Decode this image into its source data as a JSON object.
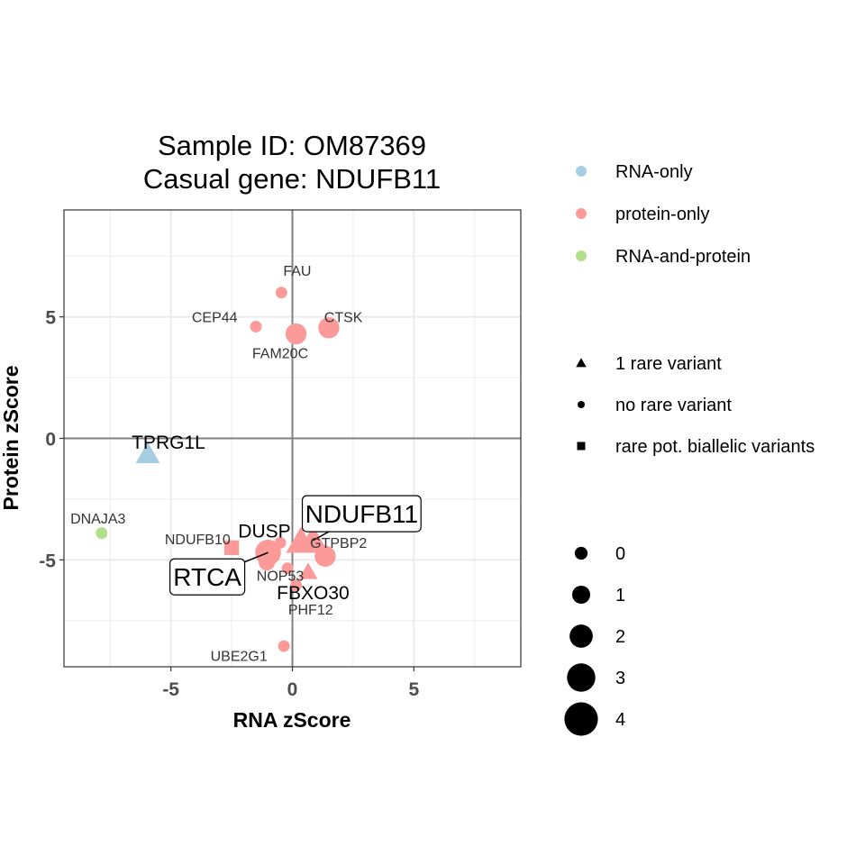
{
  "chart_data": {
    "type": "scatter",
    "title_lines": [
      "Sample ID: OM87369",
      "Casual gene: NDUFB11"
    ],
    "xlabel": "RNA zScore",
    "ylabel": "Protein zScore",
    "xlim": [
      -9.4,
      9.4
    ],
    "ylim": [
      -9.4,
      9.4
    ],
    "x_ticks": [
      -5,
      0,
      5
    ],
    "y_ticks": [
      -5,
      0,
      5
    ],
    "x_tick_labels": [
      "-5",
      "0",
      "5"
    ],
    "y_tick_labels": [
      "-5",
      "0",
      "5"
    ],
    "grid": true,
    "legend_position": "right",
    "colors": {
      "rna_only": "#a6cee3",
      "protein_only": "#fb9a99",
      "rna_and_protein": "#b2df8a"
    },
    "color_legend": [
      {
        "key": "rna_only",
        "label": "RNA-only"
      },
      {
        "key": "protein_only",
        "label": "protein-only"
      },
      {
        "key": "rna_and_protein",
        "label": "RNA-and-protein"
      }
    ],
    "shape_legend": [
      {
        "shape": "triangle",
        "label": "1 rare variant"
      },
      {
        "shape": "circle",
        "label": "no rare variant"
      },
      {
        "shape": "square",
        "label": "rare pot. biallelic variants"
      }
    ],
    "size_legend": [
      {
        "value": 0,
        "label": "0"
      },
      {
        "value": 1,
        "label": "1"
      },
      {
        "value": 2,
        "label": "2"
      },
      {
        "value": 3,
        "label": "3"
      },
      {
        "value": 4,
        "label": "4"
      }
    ],
    "points": [
      {
        "gene": "FAU",
        "x": -0.45,
        "y": 6.0,
        "color": "protein_only",
        "shape": "circle",
        "size": 0
      },
      {
        "gene": "CEP44",
        "x": -1.5,
        "y": 4.6,
        "color": "protein_only",
        "shape": "circle",
        "size": 0
      },
      {
        "gene": "FAM20C",
        "x": 0.15,
        "y": 4.3,
        "color": "protein_only",
        "shape": "circle",
        "size": 2
      },
      {
        "gene": "CTSK",
        "x": 1.5,
        "y": 4.55,
        "color": "protein_only",
        "shape": "circle",
        "size": 2
      },
      {
        "gene": "TPRG1L",
        "x": -5.95,
        "y": -0.65,
        "color": "rna_only",
        "shape": "triangle",
        "size": 2
      },
      {
        "gene": "DNAJA3",
        "x": -7.85,
        "y": -3.9,
        "color": "rna_and_protein",
        "shape": "circle",
        "size": 0
      },
      {
        "gene": "NDUFB10",
        "x": -2.5,
        "y": -4.5,
        "color": "protein_only",
        "shape": "square",
        "size": 1
      },
      {
        "gene": "RTCA",
        "x": -1.0,
        "y": -4.7,
        "color": "protein_only",
        "shape": "circle",
        "size": 3
      },
      {
        "gene": "",
        "x": -1.05,
        "y": -5.1,
        "color": "protein_only",
        "shape": "circle",
        "size": 1
      },
      {
        "gene": "",
        "x": -0.5,
        "y": -4.3,
        "color": "protein_only",
        "shape": "circle",
        "size": 0
      },
      {
        "gene": "DUSP",
        "x": 0.35,
        "y": -4.25,
        "color": "protein_only",
        "shape": "triangle",
        "size": 3
      },
      {
        "gene": "NDUFB11",
        "x": 0.85,
        "y": -4.2,
        "color": "protein_only",
        "shape": "triangle",
        "size": 3
      },
      {
        "gene": "GTPBP2",
        "x": 1.35,
        "y": -4.85,
        "color": "protein_only",
        "shape": "circle",
        "size": 2
      },
      {
        "gene": "NOP53",
        "x": -0.2,
        "y": -5.35,
        "color": "protein_only",
        "shape": "circle",
        "size": 0
      },
      {
        "gene": "FBXO30",
        "x": 0.65,
        "y": -5.5,
        "color": "protein_only",
        "shape": "triangle",
        "size": 1
      },
      {
        "gene": "PHF12",
        "x": 0.15,
        "y": -6.05,
        "color": "protein_only",
        "shape": "circle",
        "size": 0
      },
      {
        "gene": "UBE2G1",
        "x": -0.35,
        "y": -8.55,
        "color": "protein_only",
        "shape": "circle",
        "size": 0
      }
    ],
    "annotations": [
      {
        "gene": "FAU",
        "text": "FAU",
        "style": "small",
        "tx": 0.2,
        "ty": 6.9
      },
      {
        "gene": "CEP44",
        "text": "CEP44",
        "style": "small",
        "tx": -3.2,
        "ty": 5.0
      },
      {
        "gene": "CTSK",
        "text": "CTSK",
        "style": "small",
        "tx": 2.1,
        "ty": 5.0
      },
      {
        "gene": "FAM20C",
        "text": "FAM20C",
        "style": "small",
        "tx": -0.5,
        "ty": 3.5
      },
      {
        "gene": "TPRG1L",
        "text": "TPRG1L",
        "style": "medium",
        "tx": -5.1,
        "ty": -0.15
      },
      {
        "gene": "DNAJA3",
        "text": "DNAJA3",
        "style": "small",
        "tx": -8.0,
        "ty": -3.3
      },
      {
        "gene": "NDUFB10",
        "text": "NDUFB10",
        "style": "small",
        "tx": -3.9,
        "ty": -4.15
      },
      {
        "gene": "DUSP",
        "text": "DUSP",
        "style": "medium",
        "tx": -1.15,
        "ty": -3.8
      },
      {
        "gene": "NDUFB11",
        "text": "NDUFB11",
        "style": "boxed",
        "tx": 2.85,
        "ty": -3.1
      },
      {
        "gene": "GTPBP2",
        "text": "GTPBP2",
        "style": "small",
        "tx": 1.9,
        "ty": -4.3
      },
      {
        "gene": "RTCA",
        "text": "RTCA",
        "style": "boxed",
        "tx": -3.5,
        "ty": -5.7
      },
      {
        "gene": "NOP53",
        "text": "NOP53",
        "style": "small",
        "tx": -0.5,
        "ty": -5.65
      },
      {
        "gene": "FBXO30",
        "text": "FBXO30",
        "style": "medium",
        "tx": 0.85,
        "ty": -6.35
      },
      {
        "gene": "PHF12",
        "text": "PHF12",
        "style": "small",
        "tx": 0.75,
        "ty": -7.05
      },
      {
        "gene": "UBE2G1",
        "text": "UBE2G1",
        "style": "small",
        "tx": -2.2,
        "ty": -8.95
      }
    ]
  }
}
